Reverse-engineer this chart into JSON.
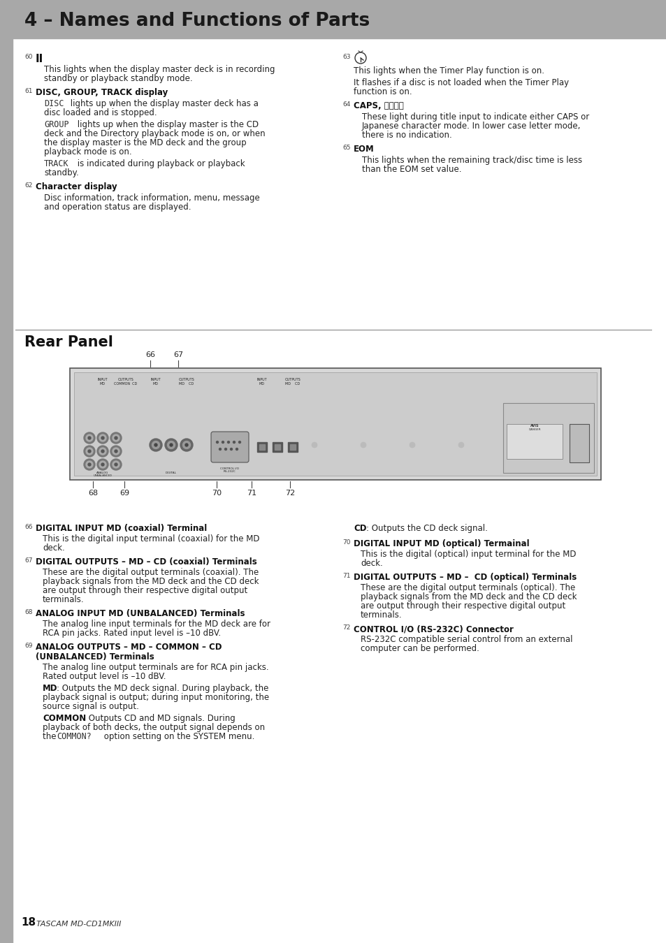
{
  "title": "4 – Names and Functions of Parts",
  "title_bg": "#a8a8a8",
  "title_color": "#1a1a1a",
  "page_bg": "#ffffff",
  "section2_title": "Rear Panel",
  "left_bar_color": "#a8a8a8",
  "footer_num": "18",
  "footer_text": "TASCAM MD-CD1MKIII",
  "endash": "–",
  "minus": "–",
  "dash10": "–10 dBV",
  "caps_label": "CAPS, カタカナ",
  "num_positions_above": {
    "66": 215,
    "67": 255
  },
  "num_positions_below": {
    "68": 133,
    "69": 178,
    "70": 310,
    "71": 360,
    "72": 415
  }
}
